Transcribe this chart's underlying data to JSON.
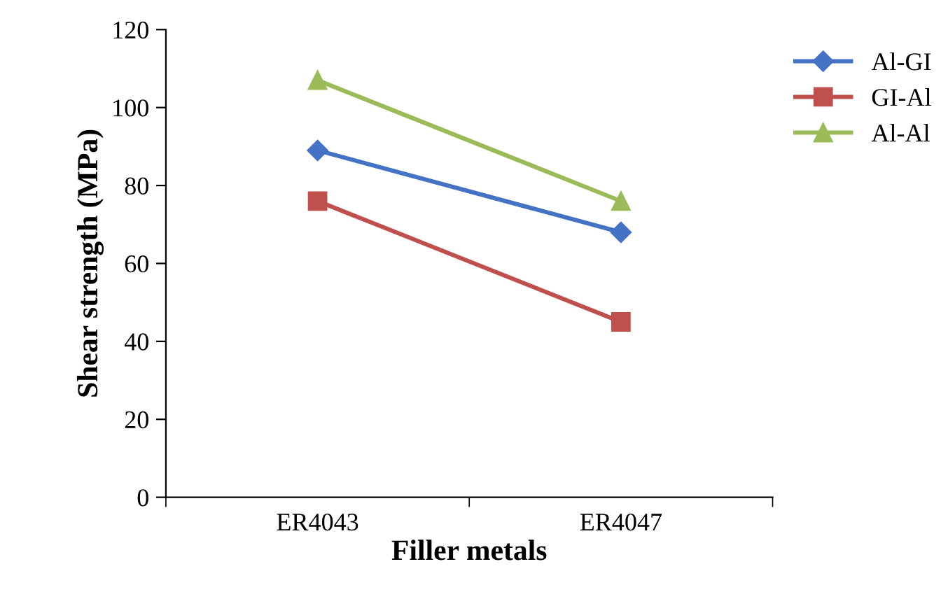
{
  "chart_data": {
    "type": "line",
    "xlabel": "Filler metals",
    "ylabel": "Shear strength (MPa)",
    "categories": [
      "ER4043",
      "ER4047"
    ],
    "series": [
      {
        "name": "Al-GI",
        "color": "#4472c4",
        "marker": "diamond",
        "values": [
          89,
          68
        ]
      },
      {
        "name": "GI-Al",
        "color": "#c0504d",
        "marker": "square",
        "values": [
          76,
          45
        ]
      },
      {
        "name": "Al-Al",
        "color": "#9bbb59",
        "marker": "triangle",
        "values": [
          107,
          76
        ]
      }
    ],
    "ylim": [
      0,
      120
    ],
    "yticks": [
      0,
      20,
      40,
      60,
      80,
      100,
      120
    ],
    "grid": false,
    "legend": "top right"
  }
}
